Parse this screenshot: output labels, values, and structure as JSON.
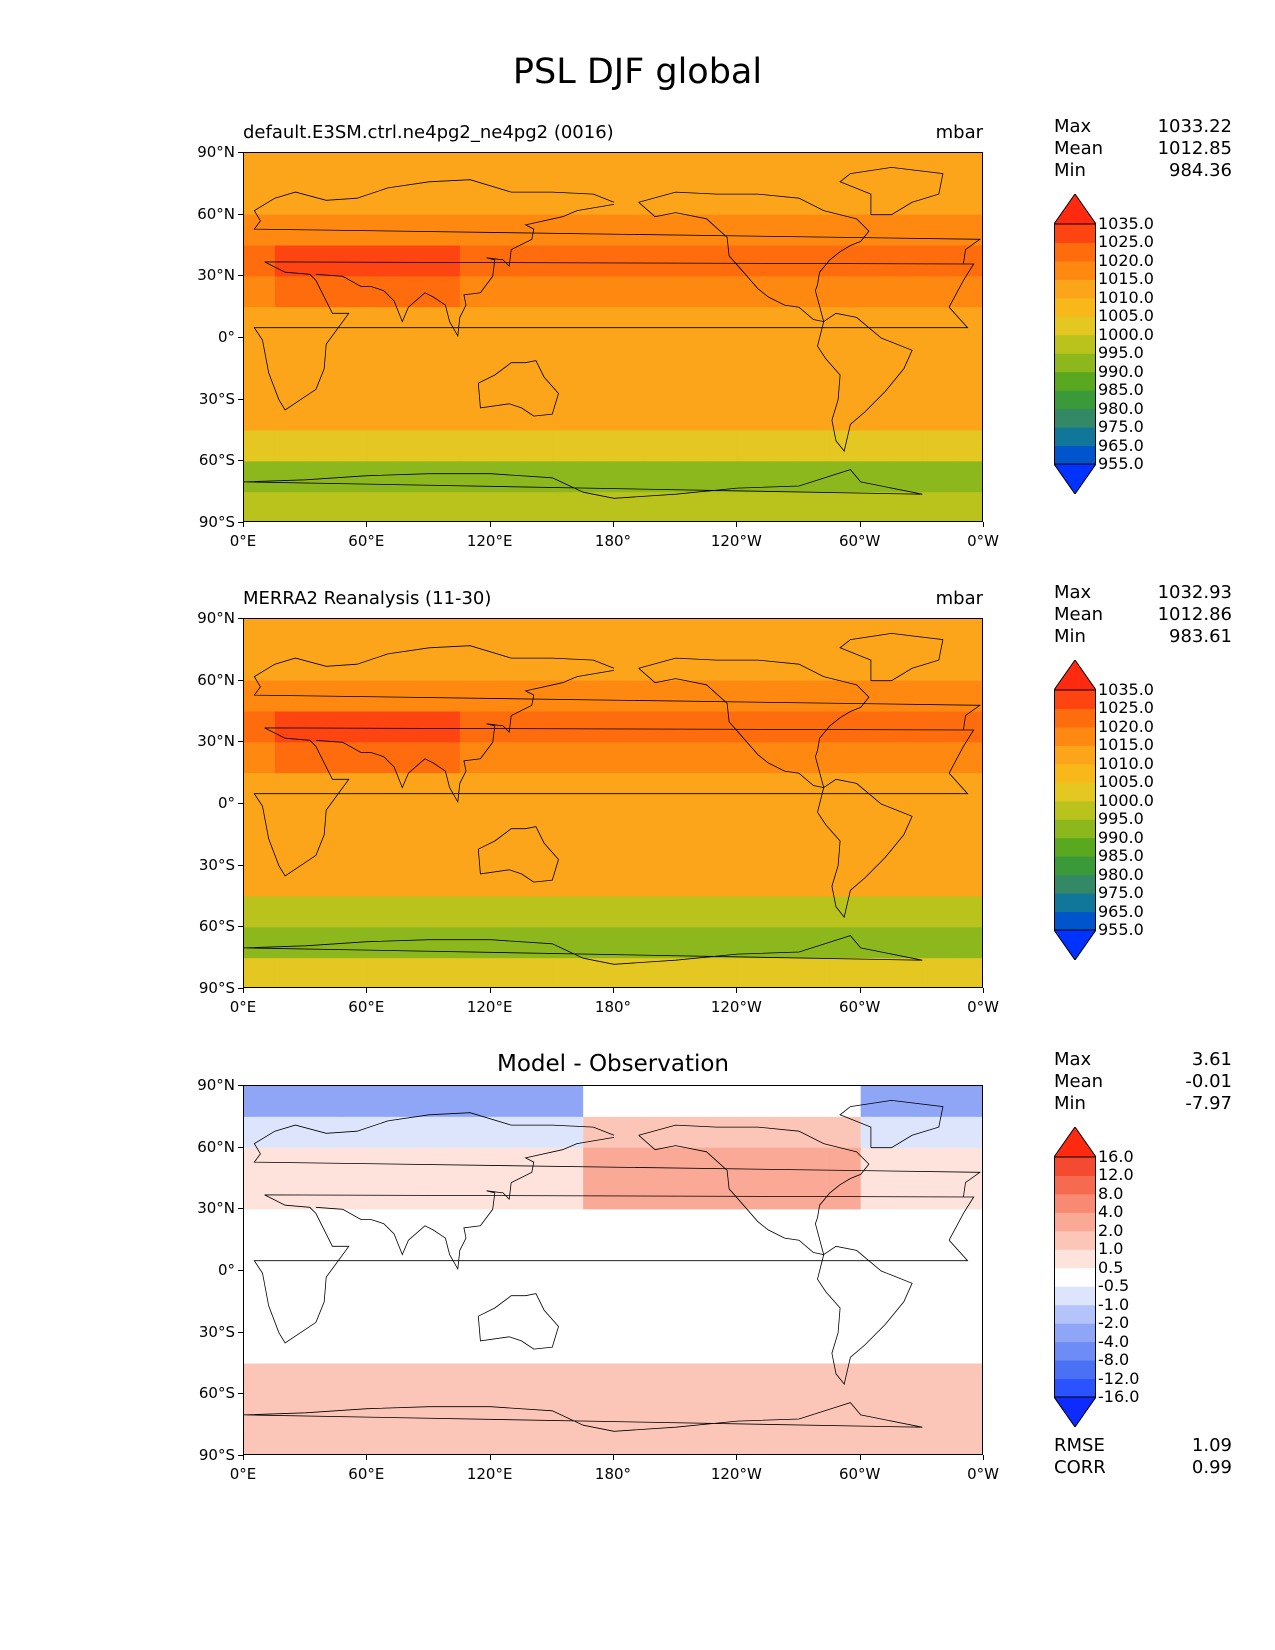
{
  "title": "PSL DJF global",
  "x_ticks": [
    "0°E",
    "60°E",
    "120°E",
    "180°",
    "120°W",
    "60°W",
    "0°W"
  ],
  "y_ticks": [
    "90°N",
    "60°N",
    "30°N",
    "0°",
    "30°S",
    "60°S",
    "90°S"
  ],
  "panels": [
    {
      "left_title": "default.E3SM.ctrl.ne4pg2_ne4pg2 (0016)",
      "units": "mbar",
      "stats": {
        "max_label": "Max",
        "max": "1033.22",
        "mean_label": "Mean",
        "mean": "1012.85",
        "min_label": "Min",
        "min": "984.36"
      },
      "levels": [
        "955.0",
        "965.0",
        "975.0",
        "980.0",
        "985.0",
        "990.0",
        "995.0",
        "1000.0",
        "1005.0",
        "1010.0",
        "1015.0",
        "1020.0",
        "1025.0",
        "1035.0"
      ]
    },
    {
      "left_title": "MERRA2 Reanalysis (11-30)",
      "units": "mbar",
      "stats": {
        "max_label": "Max",
        "max": "1032.93",
        "mean_label": "Mean",
        "mean": "1012.86",
        "min_label": "Min",
        "min": "983.61"
      },
      "levels": [
        "955.0",
        "965.0",
        "975.0",
        "980.0",
        "985.0",
        "990.0",
        "995.0",
        "1000.0",
        "1005.0",
        "1010.0",
        "1015.0",
        "1020.0",
        "1025.0",
        "1035.0"
      ]
    },
    {
      "center_title": "Model - Observation",
      "stats": {
        "max_label": "Max",
        "max": "3.61",
        "mean_label": "Mean",
        "mean": "-0.01",
        "min_label": "Min",
        "min": "-7.97"
      },
      "levels": [
        "-16.0",
        "-12.0",
        "-8.0",
        "-4.0",
        "-2.0",
        "-1.0",
        "-0.5",
        "0.5",
        "1.0",
        "2.0",
        "4.0",
        "8.0",
        "12.0",
        "16.0"
      ],
      "metrics": {
        "rmse_label": "RMSE",
        "rmse": "1.09",
        "corr_label": "CORR",
        "corr": "0.99"
      }
    }
  ],
  "colors": {
    "psl_scale": [
      "#0033ff",
      "#0055cc",
      "#11779a",
      "#338866",
      "#3a9a3a",
      "#5aa820",
      "#8cb81e",
      "#bac21c",
      "#e4c720",
      "#f8b81a",
      "#fca51a",
      "#ff8810",
      "#ff6c0e",
      "#fe4410",
      "#ff2a10"
    ],
    "diff_scale": [
      "#0d2aff",
      "#2b52ff",
      "#4a70f4",
      "#6d8cf5",
      "#8fa6f6",
      "#b4c4fa",
      "#dde5fc",
      "#ffffff",
      "#fde3dc",
      "#fbc6b8",
      "#f9a995",
      "#f88a74",
      "#f66a50",
      "#f44a30",
      "#ff2a10"
    ]
  },
  "chart_data": [
    {
      "type": "heatmap",
      "title": "default.E3SM.ctrl.ne4pg2_ne4pg2 (0016)",
      "units": "mbar",
      "x": [
        "0°E",
        "60°E",
        "120°E",
        "180°",
        "120°W",
        "60°W",
        "0°W"
      ],
      "y": [
        "90°N",
        "60°N",
        "30°N",
        "0°",
        "30°S",
        "60°S",
        "90°S"
      ],
      "zonal_profile": {
        "lat": [
          90,
          75,
          60,
          45,
          30,
          15,
          0,
          -15,
          -30,
          -45,
          -60,
          -75,
          -90
        ],
        "value": [
          1013,
          1010,
          1012,
          1020,
          1020,
          1013,
          1010,
          1012,
          1014,
          1008,
          992,
          996,
          1003
        ]
      },
      "levels": [
        955,
        965,
        975,
        980,
        985,
        990,
        995,
        1000,
        1005,
        1010,
        1015,
        1020,
        1025,
        1035
      ],
      "max": 1033.22,
      "mean": 1012.85,
      "min": 984.36
    },
    {
      "type": "heatmap",
      "title": "MERRA2 Reanalysis (11-30)",
      "units": "mbar",
      "x": [
        "0°E",
        "60°E",
        "120°E",
        "180°",
        "120°W",
        "60°W",
        "0°W"
      ],
      "y": [
        "90°N",
        "60°N",
        "30°N",
        "0°",
        "30°S",
        "60°S",
        "90°S"
      ],
      "zonal_profile": {
        "lat": [
          90,
          75,
          60,
          45,
          30,
          15,
          0,
          -15,
          -30,
          -45,
          -60,
          -75,
          -90
        ],
        "value": [
          1014,
          1011,
          1013,
          1021,
          1020,
          1013,
          1010,
          1012,
          1014,
          1007,
          991,
          995,
          1005
        ]
      },
      "levels": [
        955,
        965,
        975,
        980,
        985,
        990,
        995,
        1000,
        1005,
        1010,
        1015,
        1020,
        1025,
        1035
      ],
      "max": 1032.93,
      "mean": 1012.86,
      "min": 983.61
    },
    {
      "type": "heatmap",
      "title": "Model - Observation",
      "x": [
        "0°E",
        "60°E",
        "120°E",
        "180°",
        "120°W",
        "60°W",
        "0°W"
      ],
      "y": [
        "90°N",
        "60°N",
        "30°N",
        "0°",
        "30°S",
        "60°S",
        "90°S"
      ],
      "zonal_profile": {
        "lat": [
          90,
          75,
          60,
          45,
          30,
          15,
          0,
          -15,
          -30,
          -45,
          -60,
          -75,
          -90
        ],
        "value": [
          -4,
          -2,
          0.5,
          1,
          0.3,
          0,
          0,
          0,
          0,
          0.7,
          1.5,
          1,
          1
        ]
      },
      "levels": [
        -16,
        -12,
        -8,
        -4,
        -2,
        -1,
        -0.5,
        0.5,
        1,
        2,
        4,
        8,
        12,
        16
      ],
      "max": 3.61,
      "mean": -0.01,
      "min": -7.97,
      "rmse": 1.09,
      "corr": 0.99
    }
  ]
}
